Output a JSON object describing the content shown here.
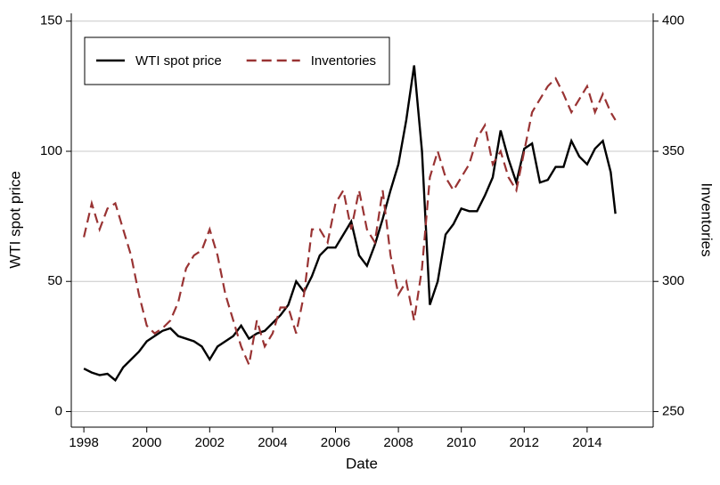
{
  "chart_data": {
    "type": "line",
    "x_label": "Date",
    "y_label": "WTI spot price",
    "y2_label": "Inventories",
    "x": [
      1998.0,
      1998.25,
      1998.5,
      1998.75,
      1999.0,
      1999.25,
      1999.5,
      1999.75,
      2000.0,
      2000.25,
      2000.5,
      2000.75,
      2001.0,
      2001.25,
      2001.5,
      2001.75,
      2002.0,
      2002.25,
      2002.5,
      2002.75,
      2003.0,
      2003.25,
      2003.5,
      2003.75,
      2004.0,
      2004.25,
      2004.5,
      2004.75,
      2005.0,
      2005.25,
      2005.5,
      2005.75,
      2006.0,
      2006.25,
      2006.5,
      2006.75,
      2007.0,
      2007.25,
      2007.5,
      2007.75,
      2008.0,
      2008.25,
      2008.5,
      2008.75,
      2009.0,
      2009.25,
      2009.5,
      2009.75,
      2010.0,
      2010.25,
      2010.5,
      2010.75,
      2011.0,
      2011.25,
      2011.5,
      2011.75,
      2012.0,
      2012.25,
      2012.5,
      2012.75,
      2013.0,
      2013.25,
      2013.5,
      2013.75,
      2014.0,
      2014.25,
      2014.5,
      2014.75,
      2014.9
    ],
    "series": [
      {
        "name": "WTI spot price",
        "color": "#000000",
        "dashed": false,
        "values": [
          16.5,
          15,
          14,
          14.5,
          12,
          17,
          20,
          23,
          27,
          29,
          31,
          32,
          29,
          28,
          27,
          25,
          20,
          25,
          27,
          29,
          33,
          28,
          30,
          31,
          34,
          37,
          41,
          50,
          46,
          52,
          60,
          63,
          63,
          68,
          73,
          60,
          56,
          64,
          74,
          85,
          95,
          112,
          133,
          100,
          41,
          50,
          68,
          72,
          78,
          77,
          77,
          83,
          90,
          108,
          97,
          88,
          101,
          103,
          88,
          89,
          94,
          94,
          104,
          98,
          95,
          101,
          104,
          92,
          76
        ]
      },
      {
        "name": "Inventories",
        "color": "#993333",
        "dashed": true,
        "axis": "y2",
        "values": [
          317,
          330,
          320,
          328,
          330,
          320,
          310,
          295,
          283,
          280,
          282,
          285,
          292,
          305,
          310,
          312,
          320,
          310,
          295,
          285,
          275,
          268,
          285,
          275,
          280,
          290,
          290,
          280,
          295,
          320,
          320,
          315,
          330,
          335,
          320,
          335,
          320,
          315,
          335,
          310,
          295,
          300,
          285,
          305,
          340,
          350,
          340,
          335,
          340,
          345,
          355,
          360,
          345,
          350,
          340,
          335,
          350,
          365,
          370,
          375,
          378,
          372,
          365,
          370,
          375,
          365,
          372,
          365,
          362
        ]
      }
    ],
    "xlim": [
      1997.6,
      2016.1
    ],
    "xticks": [
      1998,
      2000,
      2002,
      2004,
      2006,
      2008,
      2010,
      2012,
      2014
    ],
    "ylim": [
      -6,
      153
    ],
    "yticks": [
      0,
      50,
      100,
      150
    ],
    "y2lim": [
      244,
      403
    ],
    "y2ticks": [
      250,
      300,
      350,
      400
    ],
    "grid": true,
    "legend": "top-left"
  }
}
